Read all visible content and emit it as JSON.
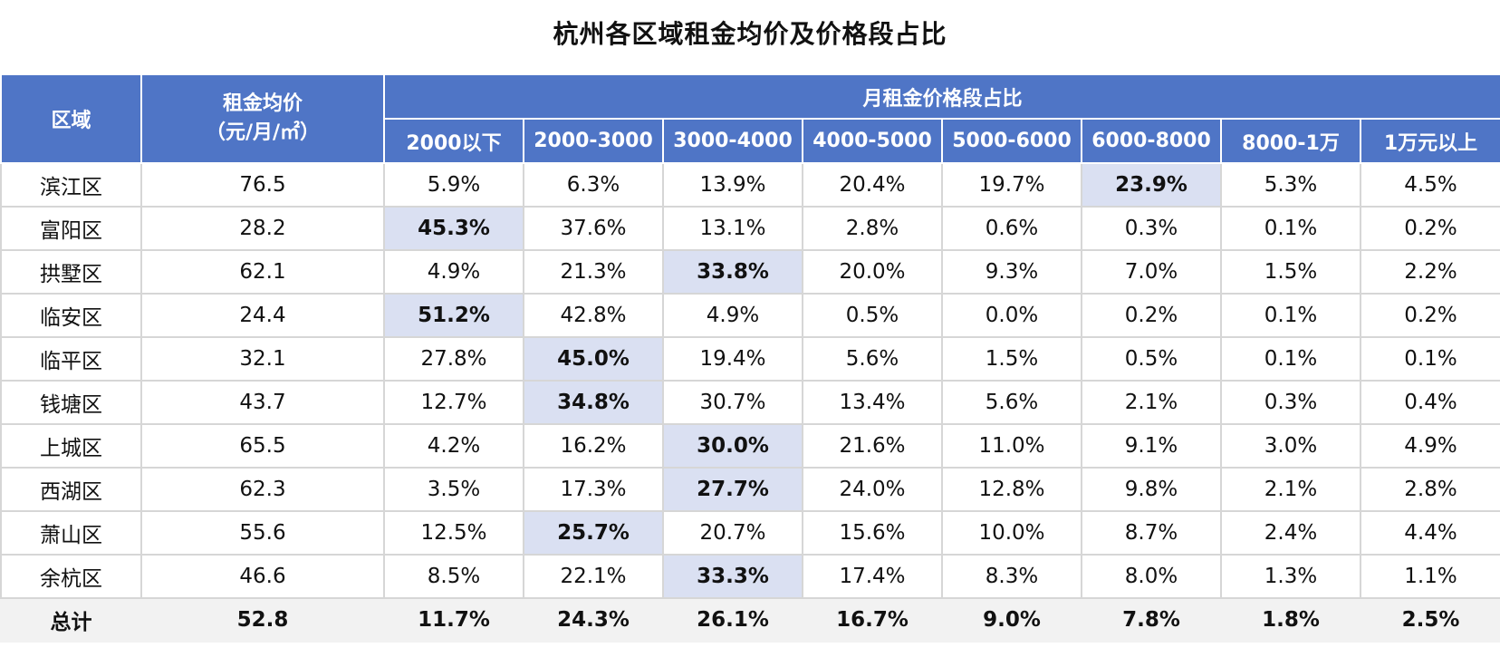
{
  "title": "杭州各区域租金均价及价格段占比",
  "header": {
    "region": "区域",
    "avg_price_line1": "租金均价",
    "avg_price_line2": "（元/月/㎡）",
    "bracket_group": "月租金价格段占比",
    "brackets": [
      "2000以下",
      "2000-3000",
      "3000-4000",
      "4000-5000",
      "5000-6000",
      "6000-8000",
      "8000-1万",
      "1万元以上"
    ]
  },
  "colors": {
    "header_bg": "#4f75c6",
    "highlight_bg": "#dae0f2",
    "total_bg": "#f2f2f2"
  },
  "rows": [
    {
      "region": "滨江区",
      "avg": "76.5",
      "values": [
        "5.9%",
        "6.3%",
        "13.9%",
        "20.4%",
        "19.7%",
        "23.9%",
        "5.3%",
        "4.5%"
      ],
      "highlight_index": 5
    },
    {
      "region": "富阳区",
      "avg": "28.2",
      "values": [
        "45.3%",
        "37.6%",
        "13.1%",
        "2.8%",
        "0.6%",
        "0.3%",
        "0.1%",
        "0.2%"
      ],
      "highlight_index": 0
    },
    {
      "region": "拱墅区",
      "avg": "62.1",
      "values": [
        "4.9%",
        "21.3%",
        "33.8%",
        "20.0%",
        "9.3%",
        "7.0%",
        "1.5%",
        "2.2%"
      ],
      "highlight_index": 2
    },
    {
      "region": "临安区",
      "avg": "24.4",
      "values": [
        "51.2%",
        "42.8%",
        "4.9%",
        "0.5%",
        "0.0%",
        "0.2%",
        "0.1%",
        "0.2%"
      ],
      "highlight_index": 0
    },
    {
      "region": "临平区",
      "avg": "32.1",
      "values": [
        "27.8%",
        "45.0%",
        "19.4%",
        "5.6%",
        "1.5%",
        "0.5%",
        "0.1%",
        "0.1%"
      ],
      "highlight_index": 1
    },
    {
      "region": "钱塘区",
      "avg": "43.7",
      "values": [
        "12.7%",
        "34.8%",
        "30.7%",
        "13.4%",
        "5.6%",
        "2.1%",
        "0.3%",
        "0.4%"
      ],
      "highlight_index": 1
    },
    {
      "region": "上城区",
      "avg": "65.5",
      "values": [
        "4.2%",
        "16.2%",
        "30.0%",
        "21.6%",
        "11.0%",
        "9.1%",
        "3.0%",
        "4.9%"
      ],
      "highlight_index": 2
    },
    {
      "region": "西湖区",
      "avg": "62.3",
      "values": [
        "3.5%",
        "17.3%",
        "27.7%",
        "24.0%",
        "12.8%",
        "9.8%",
        "2.1%",
        "2.8%"
      ],
      "highlight_index": 2
    },
    {
      "region": "萧山区",
      "avg": "55.6",
      "values": [
        "12.5%",
        "25.7%",
        "20.7%",
        "15.6%",
        "10.0%",
        "8.7%",
        "2.4%",
        "4.4%"
      ],
      "highlight_index": 1
    },
    {
      "region": "余杭区",
      "avg": "46.6",
      "values": [
        "8.5%",
        "22.1%",
        "33.3%",
        "17.4%",
        "8.3%",
        "8.0%",
        "1.3%",
        "1.1%"
      ],
      "highlight_index": 2
    }
  ],
  "total": {
    "region": "总计",
    "avg": "52.8",
    "values": [
      "11.7%",
      "24.3%",
      "26.1%",
      "16.7%",
      "9.0%",
      "7.8%",
      "1.8%",
      "2.5%"
    ]
  }
}
